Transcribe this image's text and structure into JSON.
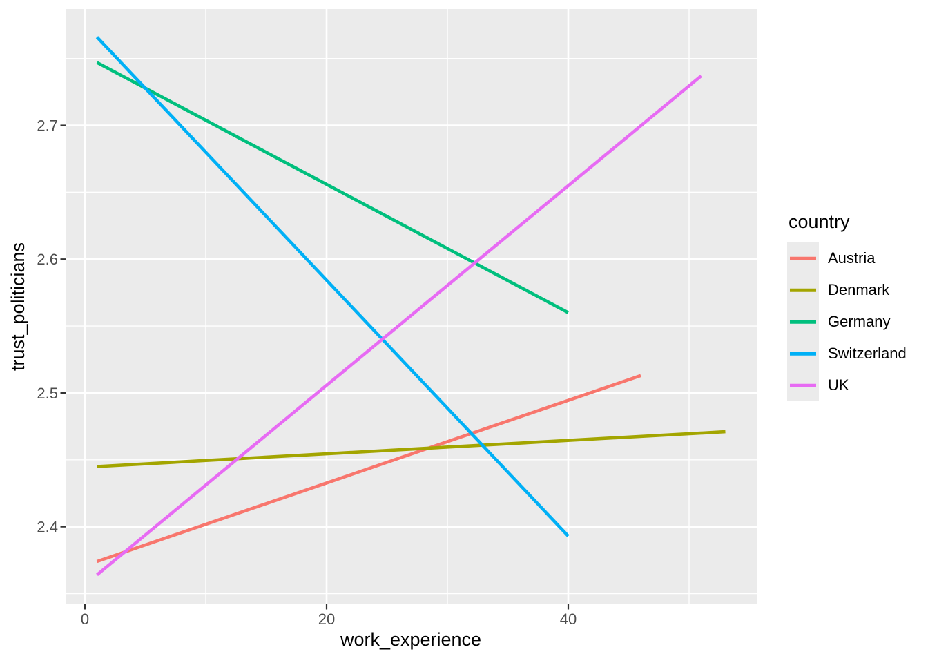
{
  "figure": {
    "background": "#FFFFFF",
    "panel_background": "#EBEBEB",
    "grid_color": "#FFFFFF",
    "tick_mark_color": "#333333",
    "tick_label_color": "#4D4D4D",
    "text_color": "#000000"
  },
  "legend": {
    "title": "country"
  },
  "chart_data": {
    "type": "line",
    "title": "",
    "xlabel": "work_experience",
    "ylabel": "trust_politicians",
    "xlim": [
      -1.6,
      55.6
    ],
    "ylim": [
      2.342,
      2.787
    ],
    "x_ticks": [
      0,
      20,
      40
    ],
    "y_ticks": [
      2.4,
      2.5,
      2.6,
      2.7
    ],
    "x_minor_ticks": [
      10,
      30,
      50
    ],
    "y_minor_ticks": [
      2.35,
      2.45,
      2.55,
      2.65,
      2.75
    ],
    "grid": true,
    "legend_position": "right",
    "series": [
      {
        "name": "Austria",
        "color": "#F8766D",
        "points": [
          [
            1,
            2.374
          ],
          [
            46,
            2.513
          ]
        ]
      },
      {
        "name": "Denmark",
        "color": "#A3A500",
        "points": [
          [
            1,
            2.445
          ],
          [
            53,
            2.471
          ]
        ]
      },
      {
        "name": "Germany",
        "color": "#00BF7D",
        "points": [
          [
            1,
            2.747
          ],
          [
            40,
            2.56
          ]
        ]
      },
      {
        "name": "Switzerland",
        "color": "#00B0F6",
        "points": [
          [
            1,
            2.766
          ],
          [
            40,
            2.393
          ]
        ]
      },
      {
        "name": "UK",
        "color": "#E76BF3",
        "points": [
          [
            1,
            2.364
          ],
          [
            51,
            2.737
          ]
        ]
      }
    ]
  }
}
